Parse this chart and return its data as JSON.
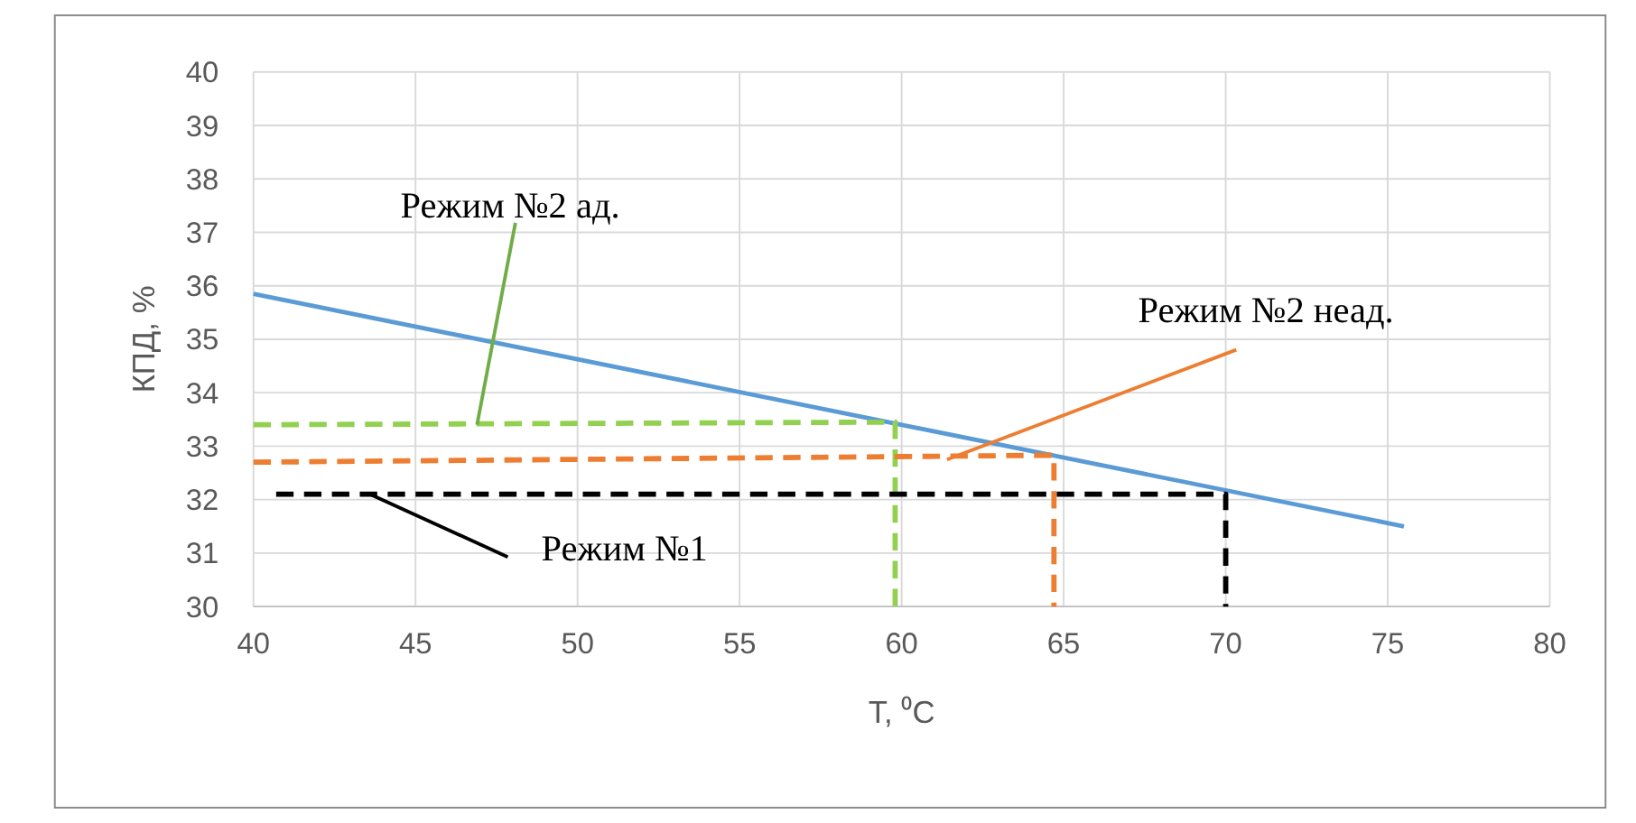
{
  "chart_data": {
    "type": "line",
    "xlabel": "T, ⁰C",
    "ylabel": "КПД, %",
    "xlim": [
      40,
      80
    ],
    "ylim": [
      30,
      40
    ],
    "xticks": [
      40,
      45,
      50,
      55,
      60,
      65,
      70,
      75,
      80
    ],
    "yticks": [
      30,
      31,
      32,
      33,
      34,
      35,
      36,
      37,
      38,
      39,
      40
    ],
    "grid": true,
    "series": [
      {
        "color": "#5b9bd5",
        "line_style": "solid",
        "x": [
          40,
          75.5
        ],
        "values": [
          35.85,
          31.5
        ]
      },
      {
        "color": "#92d050",
        "line_style": "dashed",
        "x": [
          40,
          59.8,
          59.8
        ],
        "values": [
          33.4,
          33.45,
          30
        ]
      },
      {
        "color": "#ed7d31",
        "line_style": "dashed",
        "x": [
          40,
          64.7,
          64.7
        ],
        "values": [
          32.7,
          32.83,
          30
        ]
      },
      {
        "color": "#000000",
        "line_style": "dashed",
        "x": [
          40.7,
          70,
          70
        ],
        "values": [
          32.1,
          32.1,
          30
        ]
      }
    ],
    "annotations": [
      {
        "text": "Режим №2 ад.",
        "x": 46.9,
        "y": 33.4
      },
      {
        "text": "Режим №2 неад.",
        "x": 61.4,
        "y": 32.75
      },
      {
        "text": "Режим №1",
        "x": 43.6,
        "y": 32.1
      }
    ]
  }
}
